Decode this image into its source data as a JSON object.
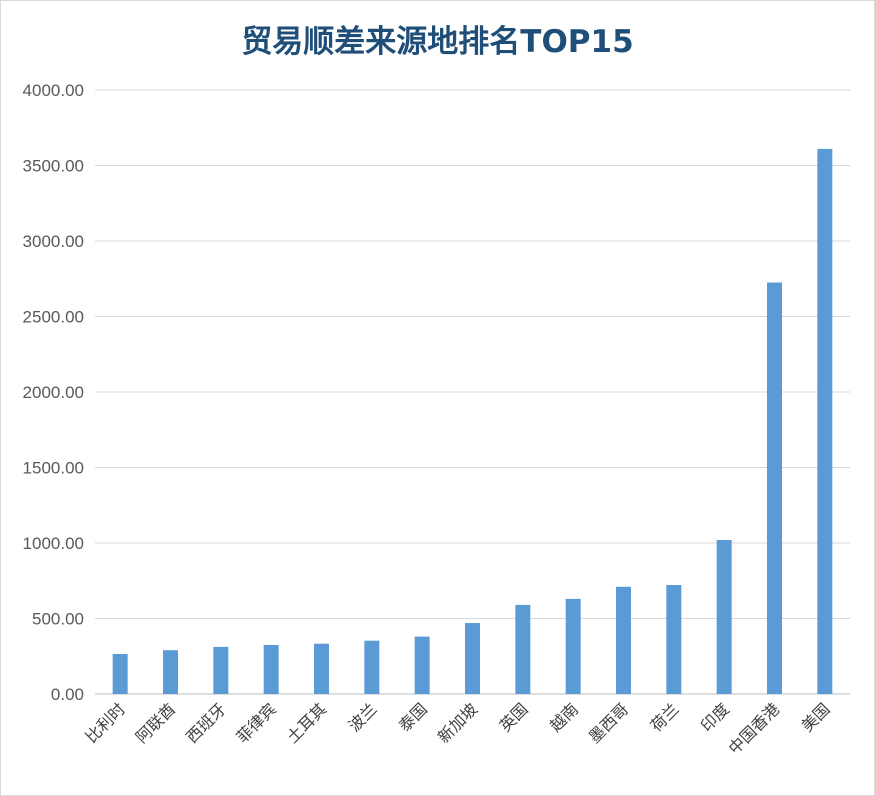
{
  "chart_data": {
    "type": "bar",
    "title": "贸易顺差来源地排名TOP15",
    "categories": [
      "比利时",
      "阿联酋",
      "西班牙",
      "菲律宾",
      "土耳其",
      "波兰",
      "泰国",
      "新加坡",
      "英国",
      "越南",
      "墨西哥",
      "荷兰",
      "印度",
      "中国香港",
      "美国"
    ],
    "values": [
      265,
      290,
      312,
      325,
      333,
      353,
      380,
      470,
      590,
      630,
      710,
      722,
      1020,
      2725,
      3610
    ],
    "ylim": [
      0,
      4000
    ],
    "yticks": [
      "0.00",
      "500.00",
      "1000.00",
      "1500.00",
      "2000.00",
      "2500.00",
      "3000.00",
      "3500.00",
      "4000.00"
    ],
    "xlabel": "",
    "ylabel": "",
    "grid": true,
    "legend": "none",
    "bar_color": "#5b9bd5",
    "grid_color": "#d9d9d9",
    "title_color": "#1f4e79"
  }
}
